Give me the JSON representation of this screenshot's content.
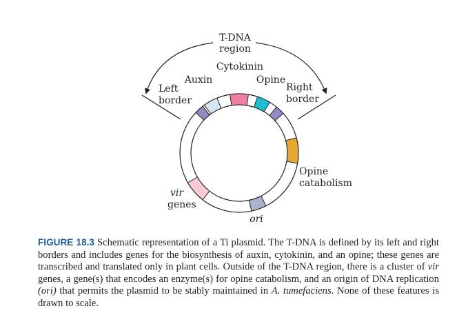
{
  "diagram": {
    "labels": {
      "tdna_line1": "T-DNA",
      "tdna_line2": "region",
      "cytokinin": "Cytokinin",
      "auxin": "Auxin",
      "opine": "Opine",
      "left_border_line1": "Left",
      "left_border_line2": "border",
      "right_border_line1": "Right",
      "right_border_line2": "border",
      "opine_catabolism_line1": "Opine",
      "opine_catabolism_line2": "catabolism",
      "vir": "vir",
      "genes": "genes",
      "ori": "ori"
    },
    "colors": {
      "left_border": "#8f8cc3",
      "auxin": "#d8e6f4",
      "cytokinin": "#f07fa1",
      "opine": "#1cbfcf",
      "right_border": "#8f8cc3",
      "opine_catabolism": "#e6a832",
      "ori": "#a9b3c9",
      "vir_genes": "#f8cad3"
    }
  },
  "caption": {
    "label": "FIGURE 18.3",
    "t1": " Schematic representation of a Ti plasmid. The T-DNA is defined by its left and right borders and includes genes for the biosynthesis of auxin, cytokinin, and an opine; these genes are transcribed and translated only in plant cells. Outside of the T-DNA region, there is a cluster of ",
    "vir": "vir",
    "t2": " genes, a gene(s) that encodes an enzyme(s) for opine catabolism, and an origin of DNA replication ",
    "ori": "(ori)",
    "t3": " that permits the plasmid to be stably maintained in ",
    "species": "A. tumefaciens",
    "t4": ". None of these features is drawn to scale."
  }
}
